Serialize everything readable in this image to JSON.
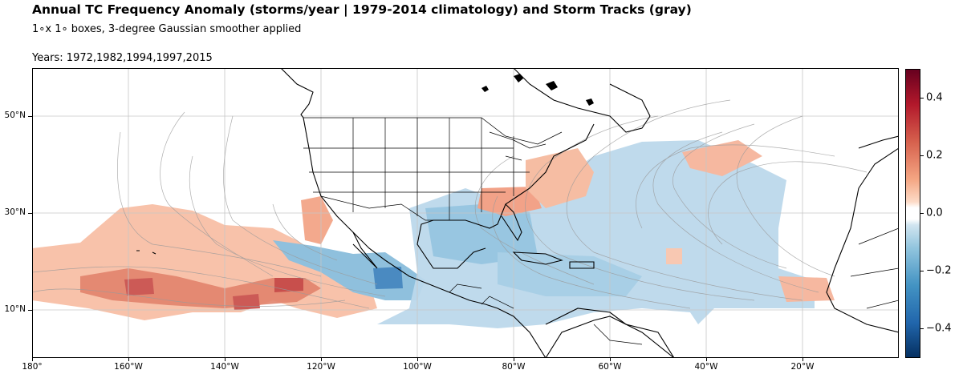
{
  "title": "Annual TC Frequency Anomaly (storms/year | 1979-2014 climatology) and Storm Tracks (gray)",
  "subtitle": "1∘x 1∘ boxes, 3-degree Gaussian smoother applied",
  "years": "Years: 1972,1982,1994,1997,2015",
  "map": {
    "lon_range": [
      -180,
      0
    ],
    "lat_range": [
      0,
      60
    ],
    "lat_labels": [
      {
        "lat": 50,
        "text": "50°N"
      },
      {
        "lat": 30,
        "text": "30°N"
      },
      {
        "lat": 10,
        "text": "10°N"
      }
    ],
    "lon_labels": [
      {
        "lon": -180,
        "text": "180°"
      },
      {
        "lon": -160,
        "text": "160°W"
      },
      {
        "lon": -140,
        "text": "140°W"
      },
      {
        "lon": -120,
        "text": "120°W"
      },
      {
        "lon": -100,
        "text": "100°W"
      },
      {
        "lon": -80,
        "text": "80°W"
      },
      {
        "lon": -60,
        "text": "60°W"
      },
      {
        "lon": -40,
        "text": "40°W"
      },
      {
        "lon": -20,
        "text": "20°W"
      }
    ],
    "features": [
      "coastlines",
      "US state borders",
      "country borders",
      "gridlines",
      "storm tracks (gray)",
      "anomaly field (RdBu_r)"
    ]
  },
  "colorbar": {
    "range": [
      -0.5,
      0.5
    ],
    "colormap": "RdBu_r",
    "ticks": [
      {
        "value": 0.4,
        "text": "0.4"
      },
      {
        "value": 0.2,
        "text": "0.2"
      },
      {
        "value": 0.0,
        "text": "0.0"
      },
      {
        "value": -0.2,
        "text": "−0.2"
      },
      {
        "value": -0.4,
        "text": "−0.4"
      }
    ]
  },
  "colors": {
    "positive_light": "#f9c6ad",
    "positive_mid": "#ee9a7e",
    "positive_strong": "#cc4a47",
    "negative_light": "#c1dbec",
    "negative_mid": "#8ebedb",
    "negative_strong": "#3b7fb9",
    "track": "#9a9a9a",
    "land_line": "#000000"
  }
}
